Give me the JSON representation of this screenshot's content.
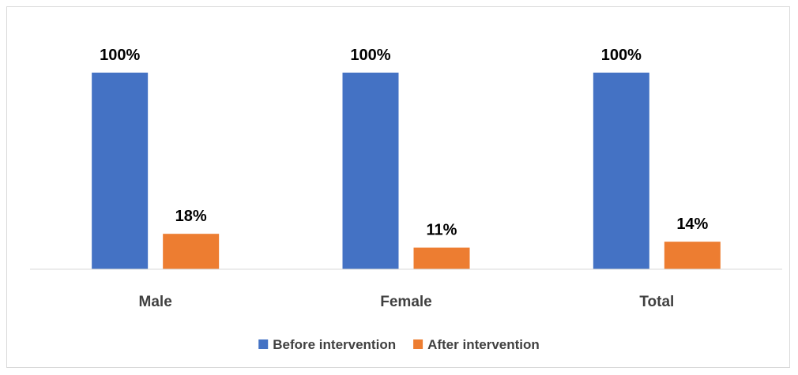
{
  "chart_data": {
    "type": "bar",
    "categories": [
      "Male",
      "Female",
      "Total"
    ],
    "series": [
      {
        "name": "Before intervention",
        "values": [
          100,
          100,
          100
        ],
        "labels": [
          "100%",
          "100%",
          "100%"
        ],
        "color": "#4472C4"
      },
      {
        "name": "After intervention",
        "values": [
          18,
          11,
          14
        ],
        "labels": [
          "18%",
          "11%",
          "14%"
        ],
        "color": "#ED7D31"
      }
    ],
    "ylim": [
      0,
      100
    ],
    "grid": false,
    "legend_position": "bottom"
  }
}
